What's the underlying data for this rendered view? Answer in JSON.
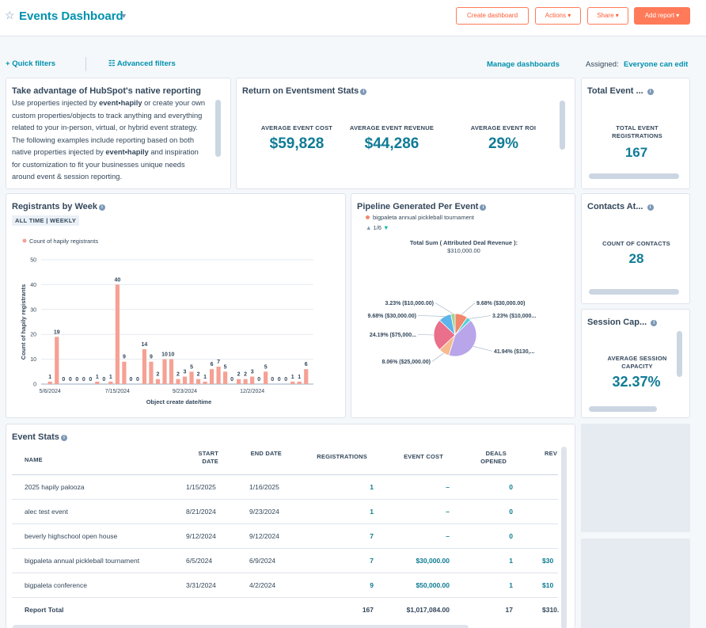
{
  "header": {
    "title": "Events Dashboard",
    "buttons": [
      "Create dashboard",
      "Actions",
      "Share",
      "Add report"
    ]
  },
  "filters": {
    "quick": "Quick filters",
    "advanced": "Advanced filters",
    "manage": "Manage dashboards",
    "assigned_label": "Assigned:",
    "assigned_value": "Everyone can edit"
  },
  "native": {
    "title": "Take advantage of HubSpot's native reporting",
    "body": [
      "Use properties injected by ",
      "event•hapily",
      " or create your own custom properties/objects to track anything and everything related to your in-person, virtual, or hybrid event strategy. The following examples include reporting based on both native properties injected by ",
      "event•hapily",
      " and inspiration for customization to fit your businesses unique needs around event & session reporting."
    ]
  },
  "roi": {
    "title": "Return on Eventsment Stats",
    "metrics": [
      {
        "label": "AVERAGE EVENT COST",
        "value": "$59,828"
      },
      {
        "label": "AVERAGE EVENT REVENUE",
        "value": "$44,286"
      },
      {
        "label": "AVERAGE EVENT ROI",
        "value": "29%"
      }
    ]
  },
  "total_event": {
    "title": "Total Event ...",
    "label": "TOTAL EVENT REGISTRATIONS",
    "value": "167"
  },
  "contacts": {
    "title": "Contacts At...",
    "label": "COUNT OF CONTACTS",
    "value": "28"
  },
  "session": {
    "title": "Session Cap...",
    "label": "AVERAGE SESSION CAPACITY",
    "value": "32.37%"
  },
  "registrants": {
    "title": "Registrants by Week",
    "badge": "ALL TIME | WEEKLY",
    "chart_data": {
      "type": "bar",
      "legend": "Count of hapily registrants",
      "y_label": "Count of hapily registrants",
      "x_label": "Object create date/time",
      "categories": [
        "5/6/2024",
        null,
        null,
        null,
        null,
        null,
        null,
        null,
        null,
        null,
        "7/15/2024",
        null,
        null,
        null,
        null,
        null,
        null,
        null,
        null,
        null,
        "9/23/2024",
        null,
        null,
        null,
        null,
        null,
        null,
        null,
        null,
        null,
        "12/2/2024",
        null,
        null,
        null,
        null,
        null,
        null,
        null,
        null
      ],
      "values": [
        1,
        19,
        0,
        0,
        0,
        0,
        0,
        1,
        0,
        1,
        40,
        9,
        0,
        0,
        14,
        9,
        2,
        10,
        10,
        2,
        3,
        5,
        2,
        1,
        6,
        7,
        5,
        0,
        2,
        2,
        3,
        0,
        5,
        0,
        0,
        0,
        1,
        1,
        6
      ],
      "color": "#f5a194",
      "ylim": [
        0,
        50
      ],
      "yticks": [
        0,
        10,
        20,
        30,
        40,
        50
      ],
      "grid": true
    }
  },
  "pipeline": {
    "title": "Pipeline Generated Per Event",
    "legend": "bigpaleta annual pickleball tournament",
    "pager": "1/6",
    "total_label": "Total Sum ( Attributed Deal Revenue ):",
    "total_value": "$310,000.00",
    "chart_data": {
      "type": "pie",
      "values": [
        9.68,
        3.23,
        41.94,
        8.06,
        24.19,
        9.68,
        3.23
      ],
      "value_labels": [
        "9.68% ($30,000.00)",
        "3.23% ($10,000...",
        "41.94% ($130,...",
        "8.06% ($25,000.00)",
        "24.19% ($75,000...",
        "9.68% ($30,000.00)",
        "3.23% ($10,000.00)"
      ],
      "colors": [
        "#f2876b",
        "#51d3d9",
        "#b8a5ea",
        "#f7b98e",
        "#ea6f8b",
        "#5cb4ea",
        "#a4d38e"
      ]
    }
  },
  "event_stats": {
    "title": "Event Stats",
    "columns": [
      "NAME",
      "START DATE",
      "END DATE",
      "REGISTRATIONS",
      "EVENT COST",
      "DEALS OPENED",
      "REV"
    ],
    "rows": [
      [
        "2025 hapily palooza",
        "1/15/2025",
        "1/16/2025",
        "1",
        "–",
        "0"
      ],
      [
        "alec test event",
        "8/21/2024",
        "9/23/2024",
        "1",
        "–",
        "0"
      ],
      [
        "beverly highschool open house",
        "9/12/2024",
        "9/12/2024",
        "7",
        "–",
        "0"
      ],
      [
        "bigpaleta annual pickleball tournament",
        "6/5/2024",
        "6/9/2024",
        "7",
        "$30,000.00",
        "1",
        "$30"
      ],
      [
        "bigpaleta conference",
        "3/31/2024",
        "4/2/2024",
        "9",
        "$50,000.00",
        "1",
        "$10"
      ]
    ],
    "total": {
      "label": "Report Total",
      "values": [
        "167",
        "$1,017,084.00",
        "17",
        "$310."
      ]
    }
  }
}
